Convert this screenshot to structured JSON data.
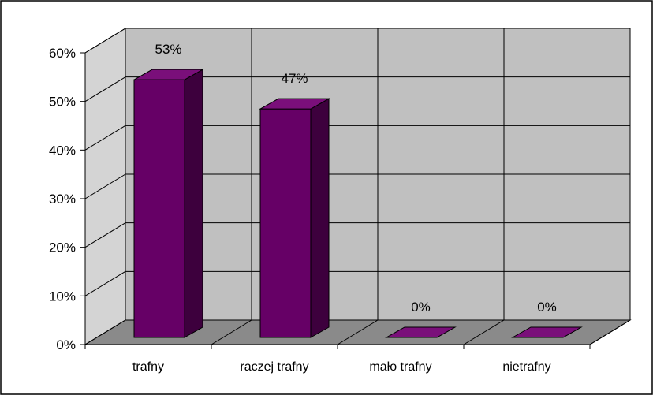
{
  "chart_data": {
    "type": "bar",
    "categories": [
      "trafny",
      "raczej trafny",
      "mało trafny",
      "nietrafny"
    ],
    "values": [
      53,
      47,
      0,
      0
    ],
    "data_labels": [
      "53%",
      "47%",
      "0%",
      "0%"
    ],
    "ylim": [
      0,
      60
    ],
    "y_ticks": [
      "0%",
      "10%",
      "20%",
      "30%",
      "40%",
      "50%",
      "60%"
    ],
    "grid": true,
    "legend": "none",
    "title": "",
    "xlabel": "",
    "ylabel": "",
    "colors": {
      "bar_front": "#660066",
      "bar_top": "#7a0f7a",
      "bar_side": "#3d003d",
      "back_wall": "#c0c0c0",
      "side_wall": "#d4d4d4",
      "floor": "#8a8a8a",
      "grid": "#000000"
    }
  }
}
